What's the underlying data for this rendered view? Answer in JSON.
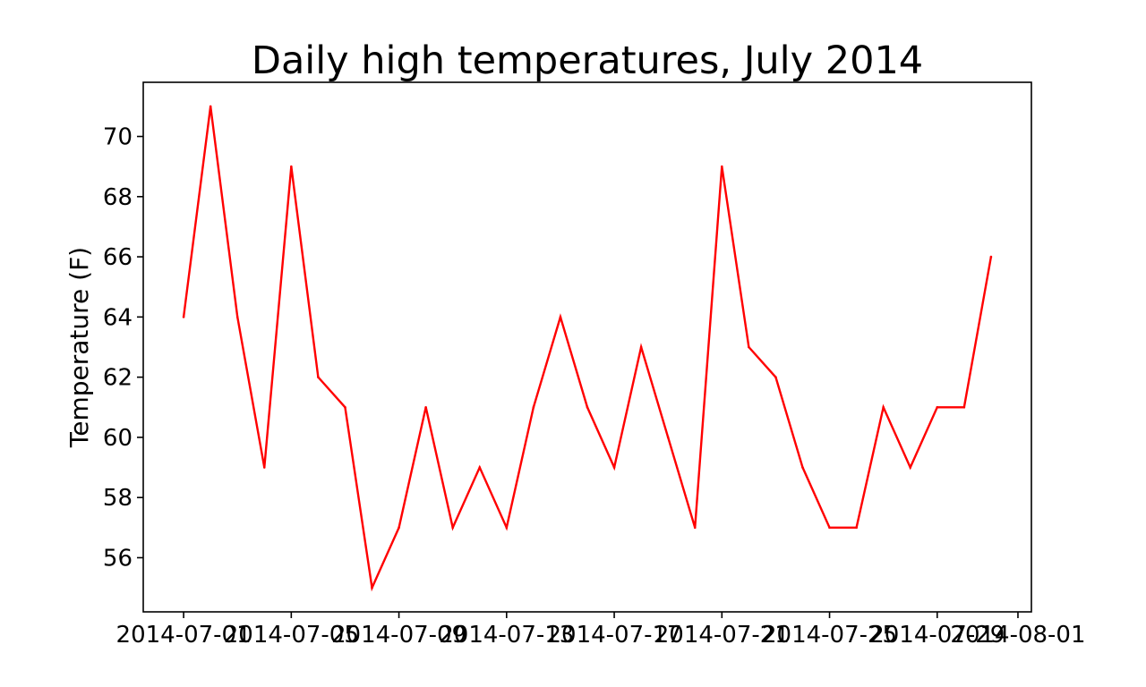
{
  "chart_data": {
    "type": "line",
    "title": "Daily high temperatures, July 2014",
    "xlabel": "",
    "ylabel": "Temperature (F)",
    "x": [
      "2014-07-01",
      "2014-07-02",
      "2014-07-03",
      "2014-07-04",
      "2014-07-05",
      "2014-07-06",
      "2014-07-07",
      "2014-07-08",
      "2014-07-09",
      "2014-07-10",
      "2014-07-11",
      "2014-07-12",
      "2014-07-13",
      "2014-07-14",
      "2014-07-15",
      "2014-07-16",
      "2014-07-17",
      "2014-07-18",
      "2014-07-19",
      "2014-07-20",
      "2014-07-21",
      "2014-07-22",
      "2014-07-23",
      "2014-07-24",
      "2014-07-25",
      "2014-07-26",
      "2014-07-27",
      "2014-07-28",
      "2014-07-29",
      "2014-07-30",
      "2014-07-31"
    ],
    "series": [
      {
        "color": "#ff0000",
        "values": [
          64,
          71,
          64,
          59,
          69,
          62,
          61,
          55,
          57,
          61,
          57,
          59,
          57,
          61,
          64,
          61,
          59,
          63,
          60,
          57,
          69,
          63,
          62,
          59,
          57,
          57,
          61,
          59,
          61,
          61,
          66
        ]
      }
    ],
    "xlim": [
      "2014-06-29.5",
      "2014-08-01.5"
    ],
    "ylim": [
      54.2,
      71.8
    ],
    "x_ticks": [
      "2014-07-01",
      "2014-07-05",
      "2014-07-09",
      "2014-07-13",
      "2014-07-17",
      "2014-07-21",
      "2014-07-25",
      "2014-07-29",
      "2014-08-01"
    ],
    "y_ticks": [
      56,
      58,
      60,
      62,
      64,
      66,
      68,
      70
    ],
    "grid": false,
    "legend": "none"
  }
}
